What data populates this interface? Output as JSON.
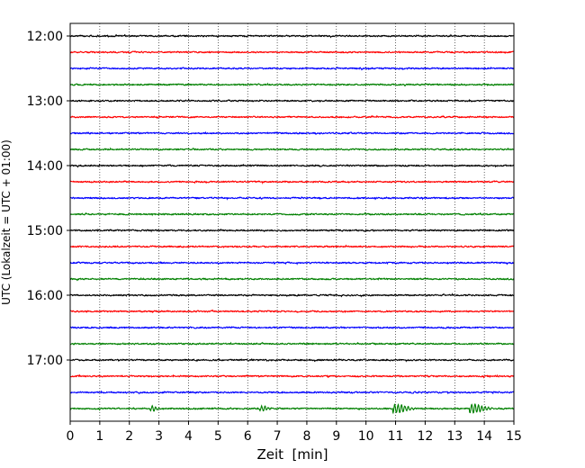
{
  "chart_data": {
    "type": "line",
    "xlabel": "Zeit  [min]",
    "ylabel": "UTC (Lokalzeit = UTC + 01:00)",
    "xlim": [
      0,
      15
    ],
    "x_ticks": [
      "0",
      "1",
      "2",
      "3",
      "4",
      "5",
      "6",
      "7",
      "8",
      "9",
      "10",
      "11",
      "12",
      "13",
      "14",
      "15"
    ],
    "y_ticks": [
      "12:00",
      "13:00",
      "14:00",
      "15:00",
      "16:00",
      "17:00"
    ],
    "grid": "vertical dotted",
    "trace_interval_min": 15,
    "trace_colors": [
      "#000000",
      "#ff0000",
      "#0000ff",
      "#008000"
    ],
    "traces": [
      {
        "start": "12:00",
        "color": "#000000"
      },
      {
        "start": "12:15",
        "color": "#ff0000"
      },
      {
        "start": "12:30",
        "color": "#0000ff"
      },
      {
        "start": "12:45",
        "color": "#008000"
      },
      {
        "start": "13:00",
        "color": "#000000"
      },
      {
        "start": "13:15",
        "color": "#ff0000"
      },
      {
        "start": "13:30",
        "color": "#0000ff"
      },
      {
        "start": "13:45",
        "color": "#008000"
      },
      {
        "start": "14:00",
        "color": "#000000"
      },
      {
        "start": "14:15",
        "color": "#ff0000"
      },
      {
        "start": "14:30",
        "color": "#0000ff"
      },
      {
        "start": "14:45",
        "color": "#008000"
      },
      {
        "start": "15:00",
        "color": "#000000"
      },
      {
        "start": "15:15",
        "color": "#ff0000"
      },
      {
        "start": "15:30",
        "color": "#0000ff"
      },
      {
        "start": "15:45",
        "color": "#008000"
      },
      {
        "start": "16:00",
        "color": "#000000"
      },
      {
        "start": "16:15",
        "color": "#ff0000"
      },
      {
        "start": "16:30",
        "color": "#0000ff"
      },
      {
        "start": "16:45",
        "color": "#008000"
      },
      {
        "start": "17:00",
        "color": "#000000"
      },
      {
        "start": "17:15",
        "color": "#ff0000"
      },
      {
        "start": "17:30",
        "color": "#0000ff"
      },
      {
        "start": "17:45",
        "color": "#008000",
        "events_min": [
          2.8,
          6.5,
          11.0,
          13.6
        ]
      }
    ]
  }
}
